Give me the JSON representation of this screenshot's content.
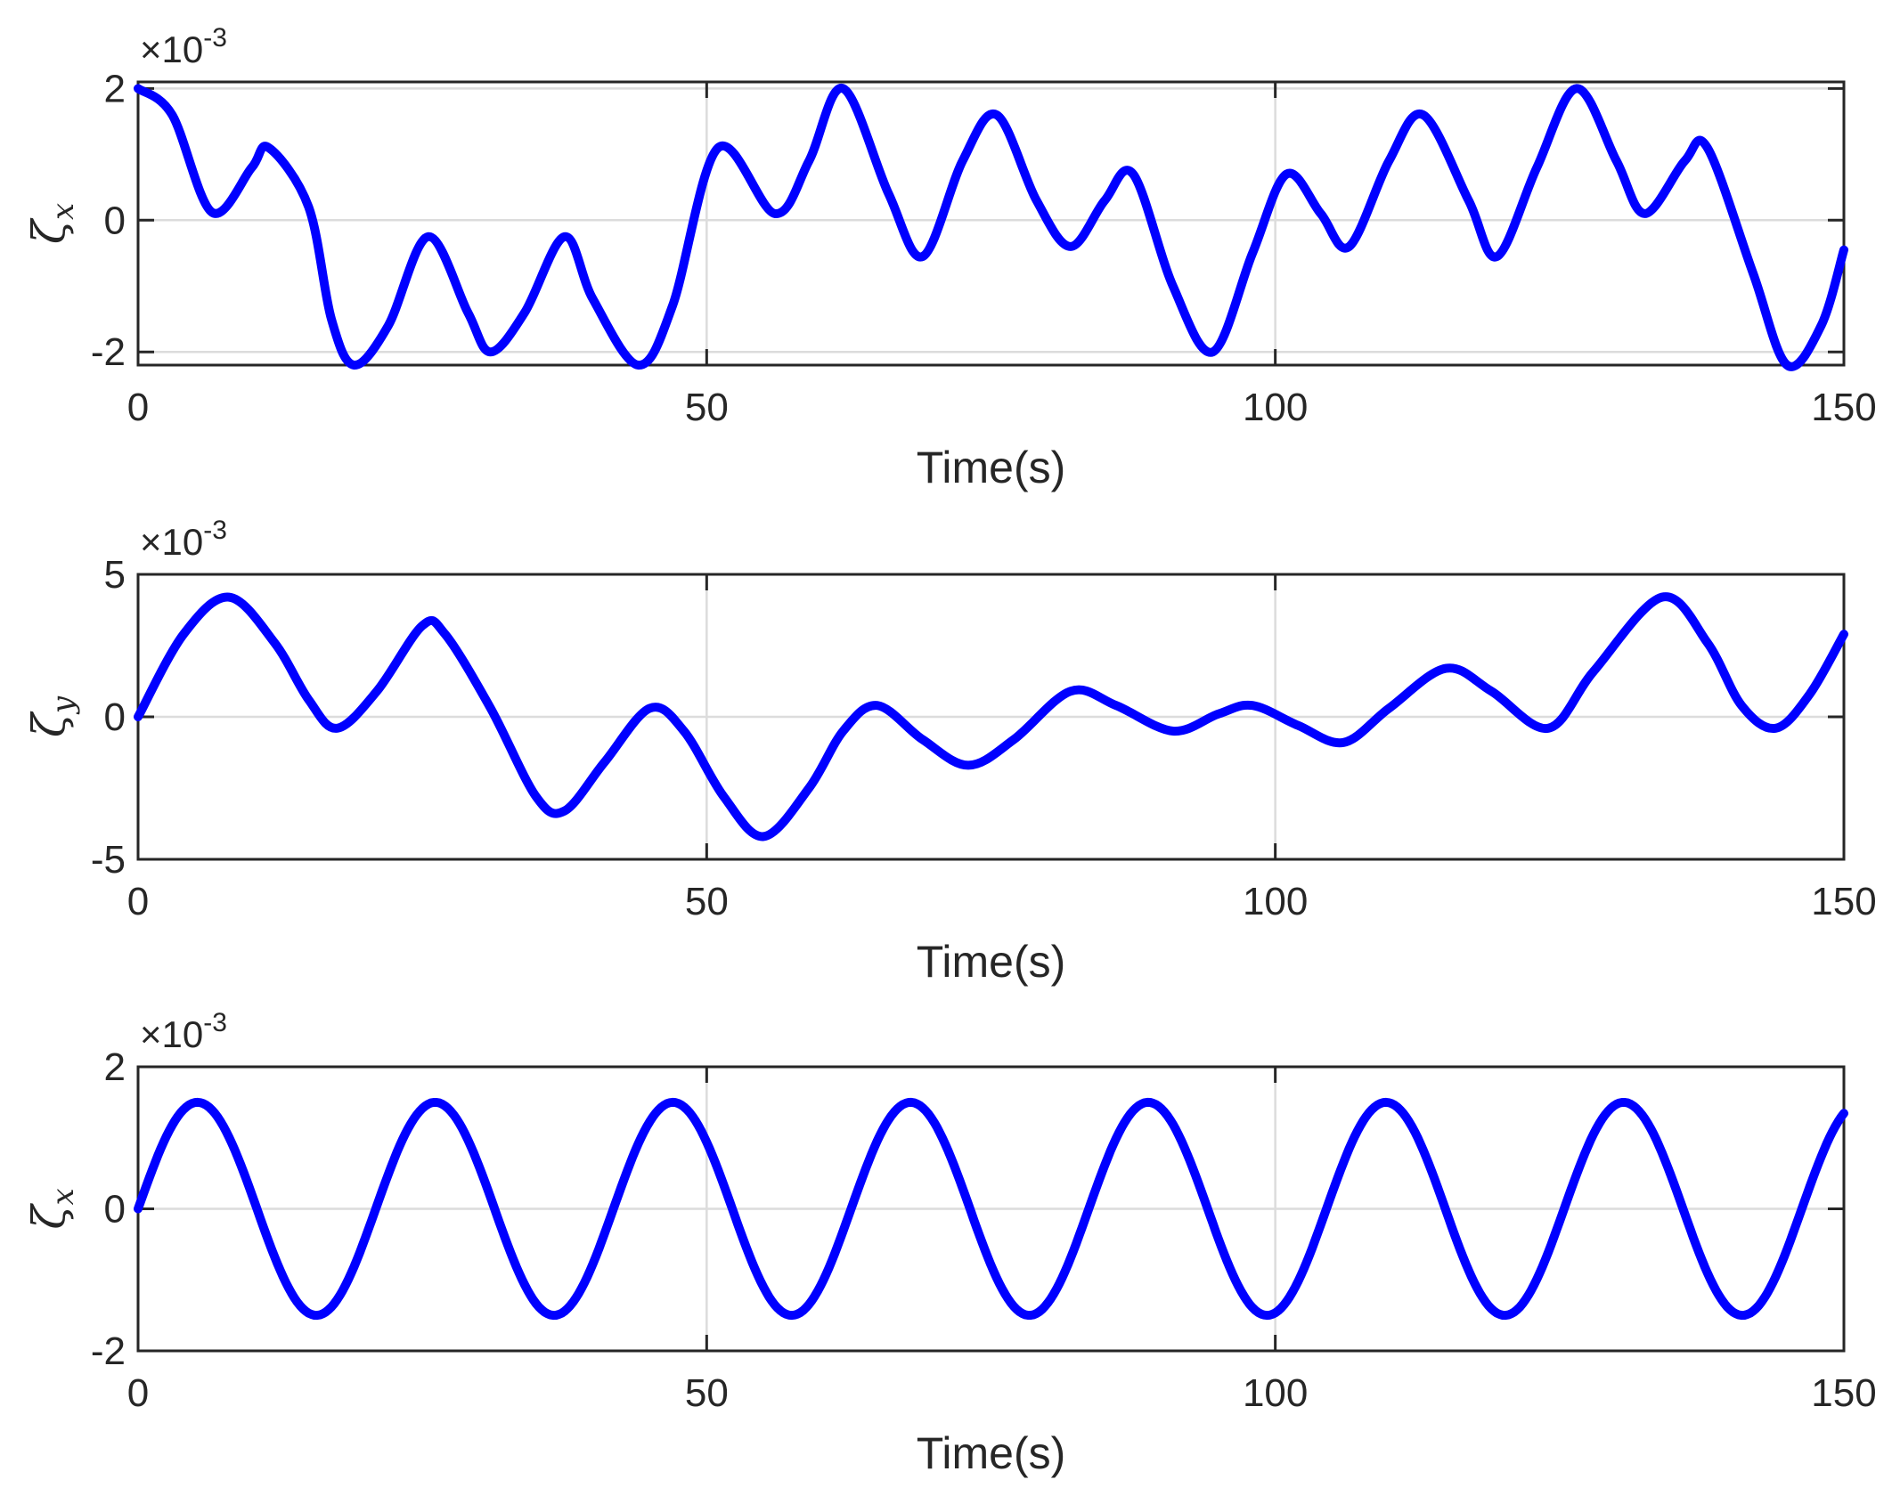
{
  "colors": {
    "line": "#0000ff",
    "axes": "#262626",
    "grid": "#dcdcdc"
  },
  "chart_data": [
    {
      "type": "line",
      "xlabel": "Time(s)",
      "ylabel_symbol": "ζ",
      "ylabel_subscript": "x",
      "exponent_base": "×10",
      "exponent_power": "-3",
      "xlim": [
        0,
        150
      ],
      "ylim": [
        -2.2,
        2.1
      ],
      "xticks": [
        0,
        50,
        100,
        150
      ],
      "xtick_labels": [
        "0",
        "50",
        "100",
        "150"
      ],
      "yticks": [
        2,
        0,
        -2
      ],
      "ytick_labels": [
        "2",
        "0",
        "-2"
      ],
      "grid": true,
      "series": [
        {
          "color": "#0000ff",
          "points": [
            [
              0,
              2.0
            ],
            [
              3,
              1.6
            ],
            [
              6.5,
              0.12
            ],
            [
              10,
              0.8
            ],
            [
              11.5,
              1.1
            ],
            [
              15,
              0.2
            ],
            [
              17,
              -1.5
            ],
            [
              19,
              -2.2
            ],
            [
              22,
              -1.6
            ],
            [
              25.5,
              -0.25
            ],
            [
              29,
              -1.4
            ],
            [
              31,
              -2.0
            ],
            [
              34,
              -1.4
            ],
            [
              37.5,
              -0.25
            ],
            [
              40,
              -1.2
            ],
            [
              44,
              -2.2
            ],
            [
              47,
              -1.3
            ],
            [
              51,
              1.1
            ],
            [
              56,
              0.1
            ],
            [
              59,
              0.9
            ],
            [
              62,
              2.0
            ],
            [
              66,
              0.4
            ],
            [
              69,
              -0.55
            ],
            [
              72.5,
              0.9
            ],
            [
              75.5,
              1.6
            ],
            [
              79,
              0.3
            ],
            [
              82,
              -0.4
            ],
            [
              85,
              0.3
            ],
            [
              87.5,
              0.7
            ],
            [
              91,
              -1.0
            ],
            [
              94.5,
              -2.0
            ],
            [
              98,
              -0.5
            ],
            [
              101,
              0.7
            ],
            [
              104,
              0.1
            ],
            [
              106.5,
              -0.4
            ],
            [
              110,
              0.9
            ],
            [
              113,
              1.6
            ],
            [
              117,
              0.3
            ],
            [
              119.5,
              -0.55
            ],
            [
              123,
              0.8
            ],
            [
              126.5,
              2.0
            ],
            [
              130,
              0.9
            ],
            [
              132.5,
              0.1
            ],
            [
              136,
              0.9
            ],
            [
              138,
              1.1
            ],
            [
              142,
              -0.8
            ],
            [
              145,
              -2.2
            ],
            [
              148,
              -1.6
            ],
            [
              150,
              -0.45
            ]
          ]
        }
      ]
    },
    {
      "type": "line",
      "xlabel": "Time(s)",
      "ylabel_symbol": "ζ",
      "ylabel_subscript": "y",
      "exponent_base": "×10",
      "exponent_power": "-3",
      "xlim": [
        0,
        150
      ],
      "ylim": [
        -5,
        5
      ],
      "xticks": [
        0,
        50,
        100,
        150
      ],
      "xtick_labels": [
        "0",
        "50",
        "100",
        "150"
      ],
      "yticks": [
        5,
        0,
        -5
      ],
      "ytick_labels": [
        "5",
        "0",
        "-5"
      ],
      "grid": true,
      "series": [
        {
          "color": "#0000ff",
          "points": [
            [
              0,
              0.0
            ],
            [
              4,
              2.9
            ],
            [
              8,
              4.2
            ],
            [
              12,
              2.6
            ],
            [
              15,
              0.6
            ],
            [
              17.5,
              -0.4
            ],
            [
              21,
              0.9
            ],
            [
              25,
              3.2
            ],
            [
              27,
              2.9
            ],
            [
              31,
              0.3
            ],
            [
              35,
              -2.8
            ],
            [
              37.5,
              -3.3
            ],
            [
              41,
              -1.6
            ],
            [
              45,
              0.3
            ],
            [
              48,
              -0.5
            ],
            [
              51.5,
              -2.8
            ],
            [
              55,
              -4.2
            ],
            [
              59,
              -2.5
            ],
            [
              62,
              -0.5
            ],
            [
              65,
              0.4
            ],
            [
              69,
              -0.8
            ],
            [
              73,
              -1.7
            ],
            [
              77,
              -0.8
            ],
            [
              82,
              0.9
            ],
            [
              86,
              0.4
            ],
            [
              91,
              -0.5
            ],
            [
              95,
              0.1
            ],
            [
              98,
              0.4
            ],
            [
              102,
              -0.3
            ],
            [
              106,
              -0.9
            ],
            [
              110,
              0.3
            ],
            [
              115,
              1.7
            ],
            [
              119,
              0.9
            ],
            [
              124,
              -0.4
            ],
            [
              128,
              1.6
            ],
            [
              134,
              4.2
            ],
            [
              138,
              2.6
            ],
            [
              141,
              0.4
            ],
            [
              144,
              -0.4
            ],
            [
              147,
              0.8
            ],
            [
              150,
              2.9
            ]
          ]
        }
      ]
    },
    {
      "type": "line",
      "xlabel": "Time(s)",
      "ylabel_symbol": "ζ",
      "ylabel_subscript": "x",
      "exponent_base": "×10",
      "exponent_power": "-3",
      "xlim": [
        0,
        150
      ],
      "ylim": [
        -2,
        2
      ],
      "xticks": [
        0,
        50,
        100,
        150
      ],
      "xtick_labels": [
        "0",
        "50",
        "100",
        "150"
      ],
      "yticks": [
        2,
        0,
        -2
      ],
      "ytick_labels": [
        "2",
        "0",
        "-2"
      ],
      "grid": true,
      "series": [
        {
          "color": "#0000ff",
          "sine": {
            "amplitude": 1.5,
            "period": 20.9,
            "phase": 0,
            "x_start": 0,
            "x_end": 150
          }
        }
      ]
    }
  ]
}
